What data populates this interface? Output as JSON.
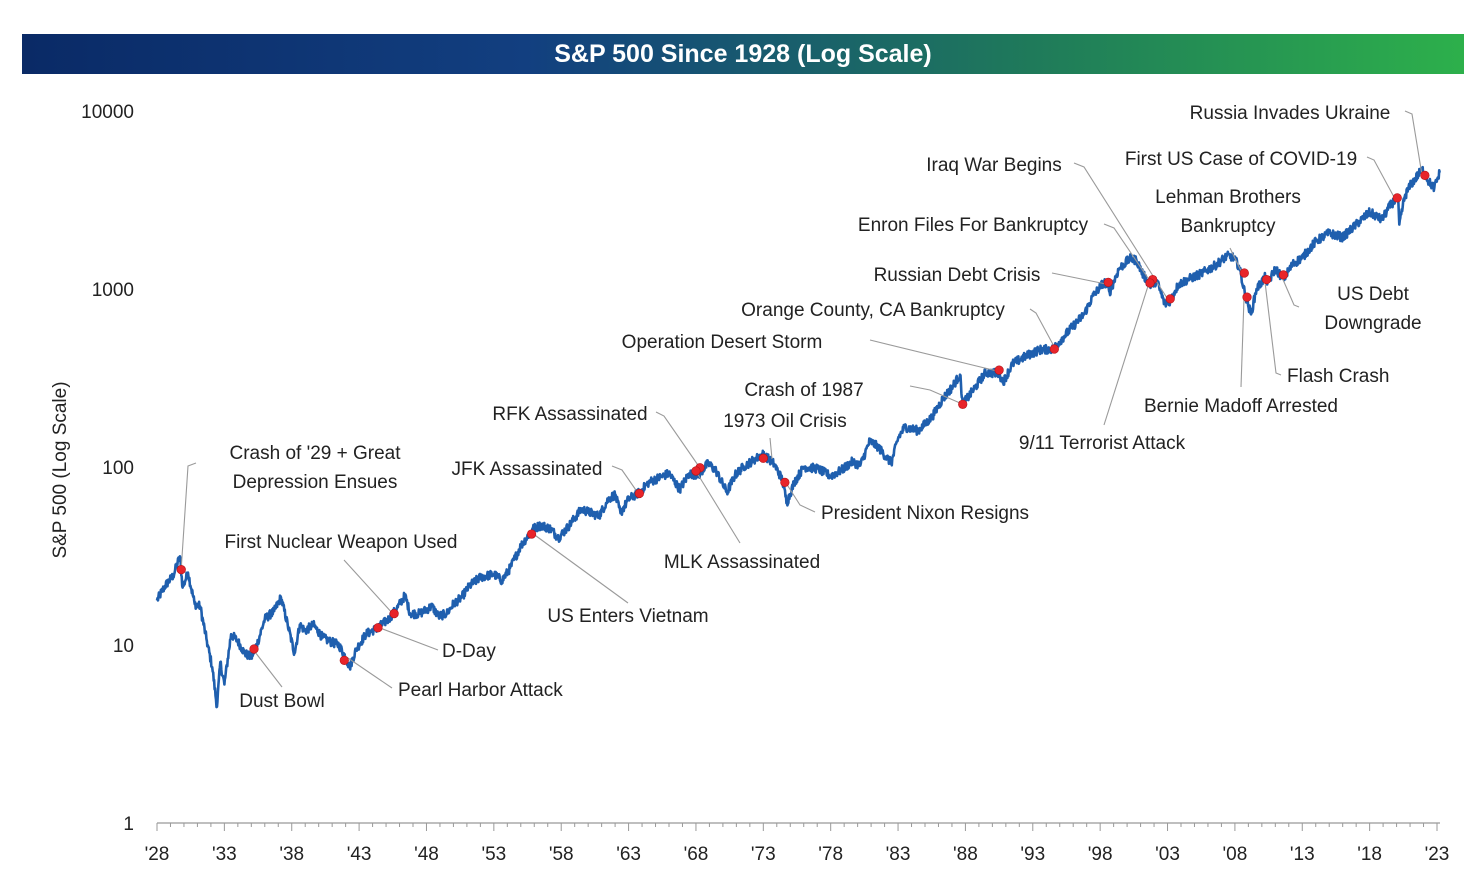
{
  "chart_data": {
    "type": "line",
    "title": "S&P 500 Since 1928 (Log Scale)",
    "ylabel": "S&P 500 (Log Scale)",
    "xlabel": "",
    "yscale": "log",
    "ylim": [
      1,
      10000
    ],
    "xlim": [
      1928,
      2023.2
    ],
    "y_ticks": [
      1,
      10,
      100,
      1000,
      10000
    ],
    "x_ticks": [
      {
        "year": 1928,
        "label": "'28"
      },
      {
        "year": 1933,
        "label": "'33"
      },
      {
        "year": 1938,
        "label": "'38"
      },
      {
        "year": 1943,
        "label": "'43"
      },
      {
        "year": 1948,
        "label": "'48"
      },
      {
        "year": 1953,
        "label": "'53"
      },
      {
        "year": 1958,
        "label": "'58"
      },
      {
        "year": 1963,
        "label": "'63"
      },
      {
        "year": 1968,
        "label": "'68"
      },
      {
        "year": 1973,
        "label": "'73"
      },
      {
        "year": 1978,
        "label": "'78"
      },
      {
        "year": 1983,
        "label": "'83"
      },
      {
        "year": 1988,
        "label": "'88"
      },
      {
        "year": 1993,
        "label": "'93"
      },
      {
        "year": 1998,
        "label": "'98"
      },
      {
        "year": 2003,
        "label": "'03"
      },
      {
        "year": 2008,
        "label": "'08"
      },
      {
        "year": 2013,
        "label": "'13"
      },
      {
        "year": 2018,
        "label": "'18"
      },
      {
        "year": 2023,
        "label": "'23"
      }
    ],
    "series": [
      {
        "name": "S&P 500",
        "color": "#1f5fae",
        "points": [
          [
            1928.0,
            17.8
          ],
          [
            1928.6,
            21.5
          ],
          [
            1929.2,
            24.5
          ],
          [
            1929.7,
            31.5
          ],
          [
            1929.9,
            21.0
          ],
          [
            1930.3,
            25.5
          ],
          [
            1930.8,
            17.0
          ],
          [
            1931.2,
            16.5
          ],
          [
            1931.7,
            10.5
          ],
          [
            1932.1,
            7.5
          ],
          [
            1932.45,
            4.5
          ],
          [
            1932.7,
            8.0
          ],
          [
            1933.0,
            6.0
          ],
          [
            1933.5,
            11.5
          ],
          [
            1934.0,
            10.5
          ],
          [
            1934.5,
            9.0
          ],
          [
            1935.0,
            8.5
          ],
          [
            1935.5,
            10.5
          ],
          [
            1936.0,
            14.0
          ],
          [
            1936.7,
            15.5
          ],
          [
            1937.2,
            18.5
          ],
          [
            1937.7,
            13.0
          ],
          [
            1938.2,
            9.0
          ],
          [
            1938.6,
            13.0
          ],
          [
            1939.0,
            12.0
          ],
          [
            1939.6,
            13.0
          ],
          [
            1940.3,
            11.0
          ],
          [
            1940.8,
            10.5
          ],
          [
            1941.5,
            10.0
          ],
          [
            1942.0,
            8.5
          ],
          [
            1942.3,
            7.5
          ],
          [
            1942.8,
            9.5
          ],
          [
            1943.5,
            11.5
          ],
          [
            1944.4,
            12.5
          ],
          [
            1945.2,
            14.0
          ],
          [
            1945.8,
            16.0
          ],
          [
            1946.4,
            19.0
          ],
          [
            1946.8,
            15.0
          ],
          [
            1947.5,
            15.0
          ],
          [
            1948.4,
            16.5
          ],
          [
            1948.9,
            14.5
          ],
          [
            1949.5,
            15.0
          ],
          [
            1950.0,
            17.0
          ],
          [
            1950.6,
            18.5
          ],
          [
            1951.2,
            21.5
          ],
          [
            1952.0,
            24.0
          ],
          [
            1953.0,
            25.0
          ],
          [
            1953.6,
            23.0
          ],
          [
            1954.2,
            27.0
          ],
          [
            1955.0,
            36.0
          ],
          [
            1955.9,
            45.0
          ],
          [
            1956.5,
            47.0
          ],
          [
            1957.2,
            45.0
          ],
          [
            1957.8,
            40.0
          ],
          [
            1958.5,
            46.0
          ],
          [
            1959.5,
            58.0
          ],
          [
            1960.0,
            56.0
          ],
          [
            1960.8,
            53.0
          ],
          [
            1961.5,
            66.0
          ],
          [
            1962.0,
            70.0
          ],
          [
            1962.4,
            55.0
          ],
          [
            1963.0,
            66.0
          ],
          [
            1963.8,
            72.0
          ],
          [
            1964.5,
            82.0
          ],
          [
            1965.4,
            88.0
          ],
          [
            1966.0,
            92.0
          ],
          [
            1966.8,
            75.0
          ],
          [
            1967.5,
            92.0
          ],
          [
            1968.2,
            90.0
          ],
          [
            1968.9,
            105.0
          ],
          [
            1969.5,
            95.0
          ],
          [
            1970.3,
            72.0
          ],
          [
            1970.9,
            90.0
          ],
          [
            1971.5,
            100.0
          ],
          [
            1972.5,
            112.0
          ],
          [
            1973.0,
            118.0
          ],
          [
            1973.8,
            104.0
          ],
          [
            1974.4,
            85.0
          ],
          [
            1974.75,
            63.0
          ],
          [
            1975.3,
            82.0
          ],
          [
            1976.0,
            100.0
          ],
          [
            1977.0,
            98.0
          ],
          [
            1978.0,
            89.0
          ],
          [
            1978.8,
            96.0
          ],
          [
            1979.6,
            107.0
          ],
          [
            1980.2,
            102.0
          ],
          [
            1980.9,
            140.0
          ],
          [
            1981.5,
            130.0
          ],
          [
            1982.5,
            105.0
          ],
          [
            1983.0,
            145.0
          ],
          [
            1983.5,
            168.0
          ],
          [
            1984.5,
            160.0
          ],
          [
            1985.5,
            190.0
          ],
          [
            1986.3,
            240.0
          ],
          [
            1987.0,
            280.0
          ],
          [
            1987.6,
            330.0
          ],
          [
            1987.8,
            225.0
          ],
          [
            1988.5,
            265.0
          ],
          [
            1989.5,
            340.0
          ],
          [
            1990.5,
            335.0
          ],
          [
            1990.8,
            300.0
          ],
          [
            1991.5,
            380.0
          ],
          [
            1992.5,
            420.0
          ],
          [
            1993.5,
            455.0
          ],
          [
            1994.5,
            460.0
          ],
          [
            1995.3,
            540.0
          ],
          [
            1996.0,
            620.0
          ],
          [
            1996.8,
            720.0
          ],
          [
            1997.5,
            920.0
          ],
          [
            1998.3,
            1100.0
          ],
          [
            1998.7,
            960.0
          ],
          [
            1999.4,
            1300.0
          ],
          [
            2000.2,
            1480.0
          ],
          [
            2000.7,
            1450.0
          ],
          [
            2001.2,
            1200.0
          ],
          [
            2001.7,
            1050.0
          ],
          [
            2002.2,
            1110.0
          ],
          [
            2002.8,
            820.0
          ],
          [
            2003.2,
            860.0
          ],
          [
            2003.8,
            1060.0
          ],
          [
            2004.5,
            1130.0
          ],
          [
            2005.5,
            1220.0
          ],
          [
            2006.5,
            1350.0
          ],
          [
            2007.4,
            1530.0
          ],
          [
            2007.8,
            1520.0
          ],
          [
            2008.3,
            1350.0
          ],
          [
            2008.8,
            900.0
          ],
          [
            2009.2,
            720.0
          ],
          [
            2009.6,
            1000.0
          ],
          [
            2010.3,
            1180.0
          ],
          [
            2010.4,
            1060.0
          ],
          [
            2011.0,
            1300.0
          ],
          [
            2011.6,
            1140.0
          ],
          [
            2012.3,
            1380.0
          ],
          [
            2013.0,
            1500.0
          ],
          [
            2014.0,
            1850.0
          ],
          [
            2015.0,
            2060.0
          ],
          [
            2016.0,
            1950.0
          ],
          [
            2017.0,
            2300.0
          ],
          [
            2018.0,
            2700.0
          ],
          [
            2018.9,
            2450.0
          ],
          [
            2019.6,
            3000.0
          ],
          [
            2020.1,
            3250.0
          ],
          [
            2020.2,
            2300.0
          ],
          [
            2020.6,
            3300.0
          ],
          [
            2021.0,
            3800.0
          ],
          [
            2021.9,
            4700.0
          ],
          [
            2022.4,
            4000.0
          ],
          [
            2022.8,
            3700.0
          ],
          [
            2023.2,
            4500.0
          ]
        ]
      }
    ],
    "events": [
      {
        "label": "Crash of '29 + Great",
        "label2": "Depression Ensues",
        "year": 1929.8,
        "value": 26.5
      },
      {
        "label": "First Nuclear Weapon Used",
        "year": 1945.6,
        "value": 15.0
      },
      {
        "label": "D-Day",
        "year": 1944.4,
        "value": 12.5
      },
      {
        "label": "Pearl Harbor Attack",
        "year": 1941.9,
        "value": 8.2
      },
      {
        "label": "Dust Bowl",
        "year": 1935.2,
        "value": 9.5
      },
      {
        "label": "US Enters Vietnam",
        "year": 1955.8,
        "value": 42.0
      },
      {
        "label": "JFK Assassinated",
        "year": 1963.8,
        "value": 71.0
      },
      {
        "label": "RFK Assassinated",
        "year": 1968.3,
        "value": 99.0
      },
      {
        "label": "MLK Assassinated",
        "year": 1968.0,
        "value": 95.0
      },
      {
        "label": "1973 Oil Crisis",
        "year": 1973.0,
        "value": 112.0
      },
      {
        "label": "President Nixon Resigns",
        "year": 1974.6,
        "value": 82.0
      },
      {
        "label": "Crash of 1987",
        "year": 1987.8,
        "value": 225.0
      },
      {
        "label": "Operation Desert Storm",
        "year": 1990.5,
        "value": 350.0
      },
      {
        "label": "Orange County, CA Bankruptcy",
        "year": 1994.6,
        "value": 460.0
      },
      {
        "label": "Russian Debt Crisis",
        "year": 1998.6,
        "value": 1090.0
      },
      {
        "label": "Enron Files For Bankruptcy",
        "year": 2001.9,
        "value": 1130.0
      },
      {
        "label": "Iraq War Begins",
        "year": 2003.2,
        "value": 880.0
      },
      {
        "label": "9/11 Terrorist Attack",
        "year": 2001.7,
        "value": 1080.0
      },
      {
        "label": "Lehman Brothers",
        "label2": "Bankruptcy",
        "year": 2008.7,
        "value": 1230.0
      },
      {
        "label": "Bernie Madoff Arrested",
        "year": 2008.9,
        "value": 900.0
      },
      {
        "label": "Flash Crash",
        "year": 2010.35,
        "value": 1130.0
      },
      {
        "label": "US Debt",
        "label2": "Downgrade",
        "year": 2011.6,
        "value": 1200.0
      },
      {
        "label": "First US Case of COVID-19",
        "year": 2020.05,
        "value": 3250.0
      },
      {
        "label": "Russia Invades Ukraine",
        "year": 2022.1,
        "value": 4350.0
      }
    ]
  }
}
